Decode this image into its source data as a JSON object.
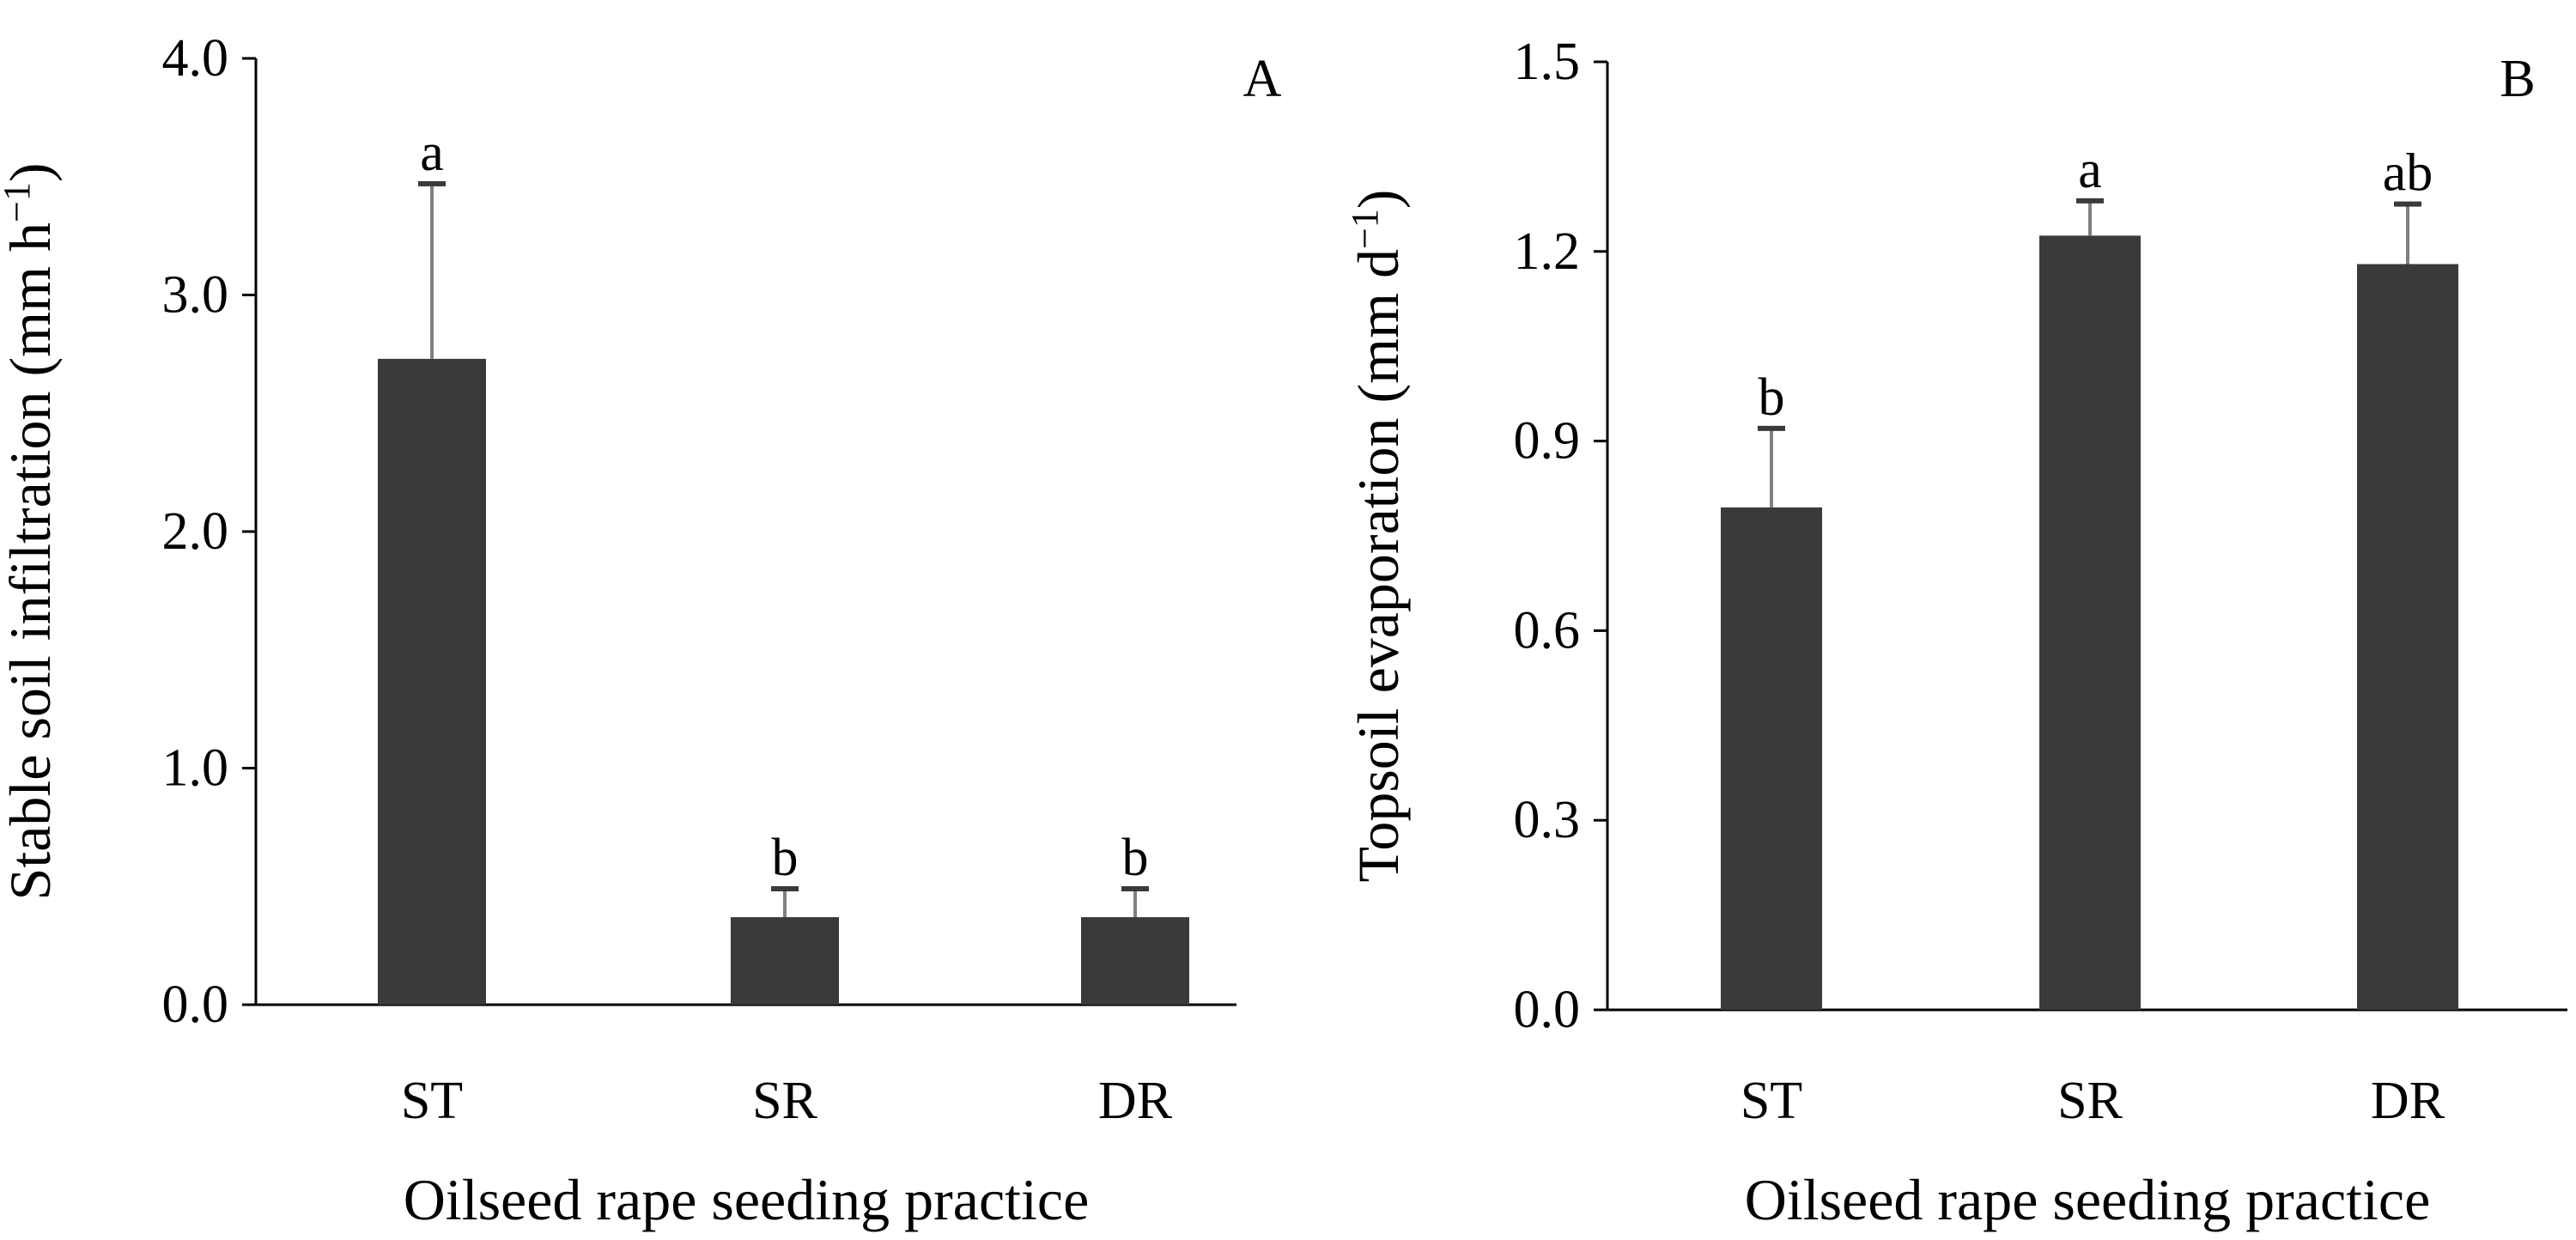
{
  "colors": {
    "bar": "#3a3a3a",
    "axis": "#000000",
    "error_bar": "#808080",
    "error_cap": "#3a3a3a"
  },
  "chart_data": [
    {
      "panel_label": "A",
      "type": "bar",
      "categories": [
        "ST",
        "SR",
        "DR"
      ],
      "values": [
        2.73,
        0.37,
        0.37
      ],
      "errors": [
        0.74,
        0.12,
        0.12
      ],
      "letters": [
        "a",
        "b",
        "b"
      ],
      "ylim": [
        0,
        4.0
      ],
      "yticks": [
        "0.0",
        "1.0",
        "2.0",
        "3.0",
        "4.0"
      ],
      "ylabel": "Stable soil infiltration (mm h",
      "ylabel_sup": "−1",
      "ylabel_end": ")",
      "xlabel": "Oilseed rape seeding practice",
      "grid": false,
      "legend": false
    },
    {
      "panel_label": "B",
      "type": "bar",
      "categories": [
        "ST",
        "SR",
        "DR"
      ],
      "values": [
        0.795,
        1.225,
        1.18
      ],
      "errors": [
        0.125,
        0.055,
        0.095
      ],
      "letters": [
        "b",
        "a",
        "ab"
      ],
      "ylim": [
        0,
        1.5
      ],
      "yticks": [
        "0.0",
        "0.3",
        "0.6",
        "0.9",
        "1.2",
        "1.5"
      ],
      "ylabel": "Topsoil evaporation (mm d",
      "ylabel_sup": "−1",
      "ylabel_end": ")",
      "xlabel": "Oilseed rape seeding practice",
      "grid": false,
      "legend": false
    }
  ]
}
